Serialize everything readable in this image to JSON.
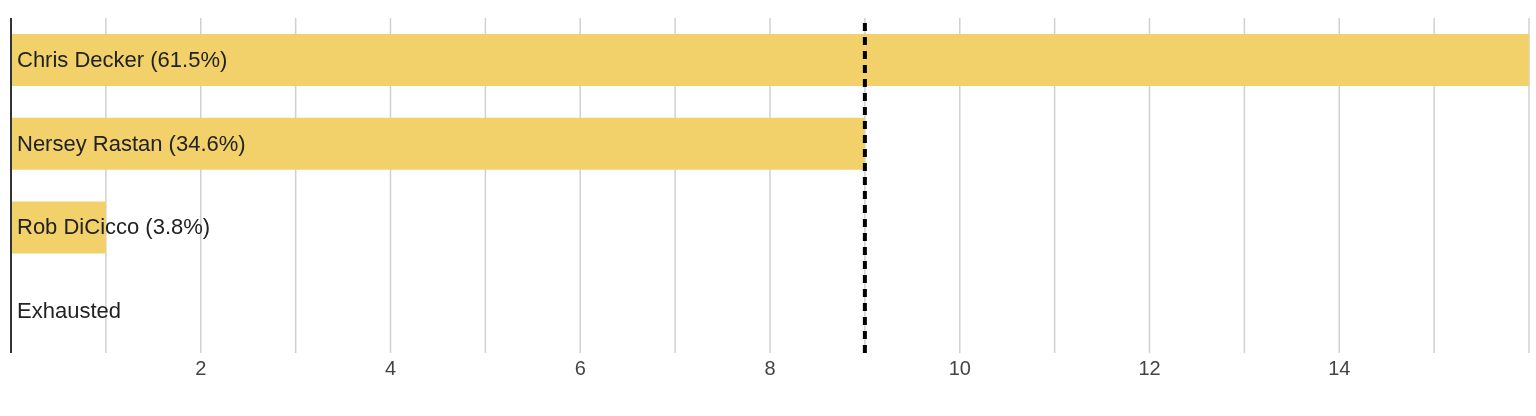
{
  "chart_data": {
    "type": "bar",
    "orientation": "horizontal",
    "categories": [
      "Chris Decker (61.5%)",
      "Nersey Rastan (34.6%)",
      "Rob DiCicco (3.8%)",
      "Exhausted"
    ],
    "values": [
      16,
      9,
      1,
      0
    ],
    "color": "#f2d16b",
    "xlim": [
      0,
      16
    ],
    "xticks": [
      {
        "value": 1,
        "label": null
      },
      2,
      {
        "value": 3,
        "label": null
      },
      4,
      {
        "value": 5,
        "label": null
      },
      6,
      {
        "value": 7,
        "label": null
      },
      8,
      {
        "value": 9,
        "label": null
      },
      10,
      {
        "value": 11,
        "label": null
      },
      12,
      {
        "value": 13,
        "label": null
      },
      14,
      {
        "value": 15,
        "label": null
      },
      {
        "value": 16,
        "label": null
      }
    ],
    "grid": "x",
    "ref_lines": [
      {
        "axis": "x",
        "value": 9,
        "color": "#000000",
        "line_style": "dashed"
      }
    ]
  }
}
